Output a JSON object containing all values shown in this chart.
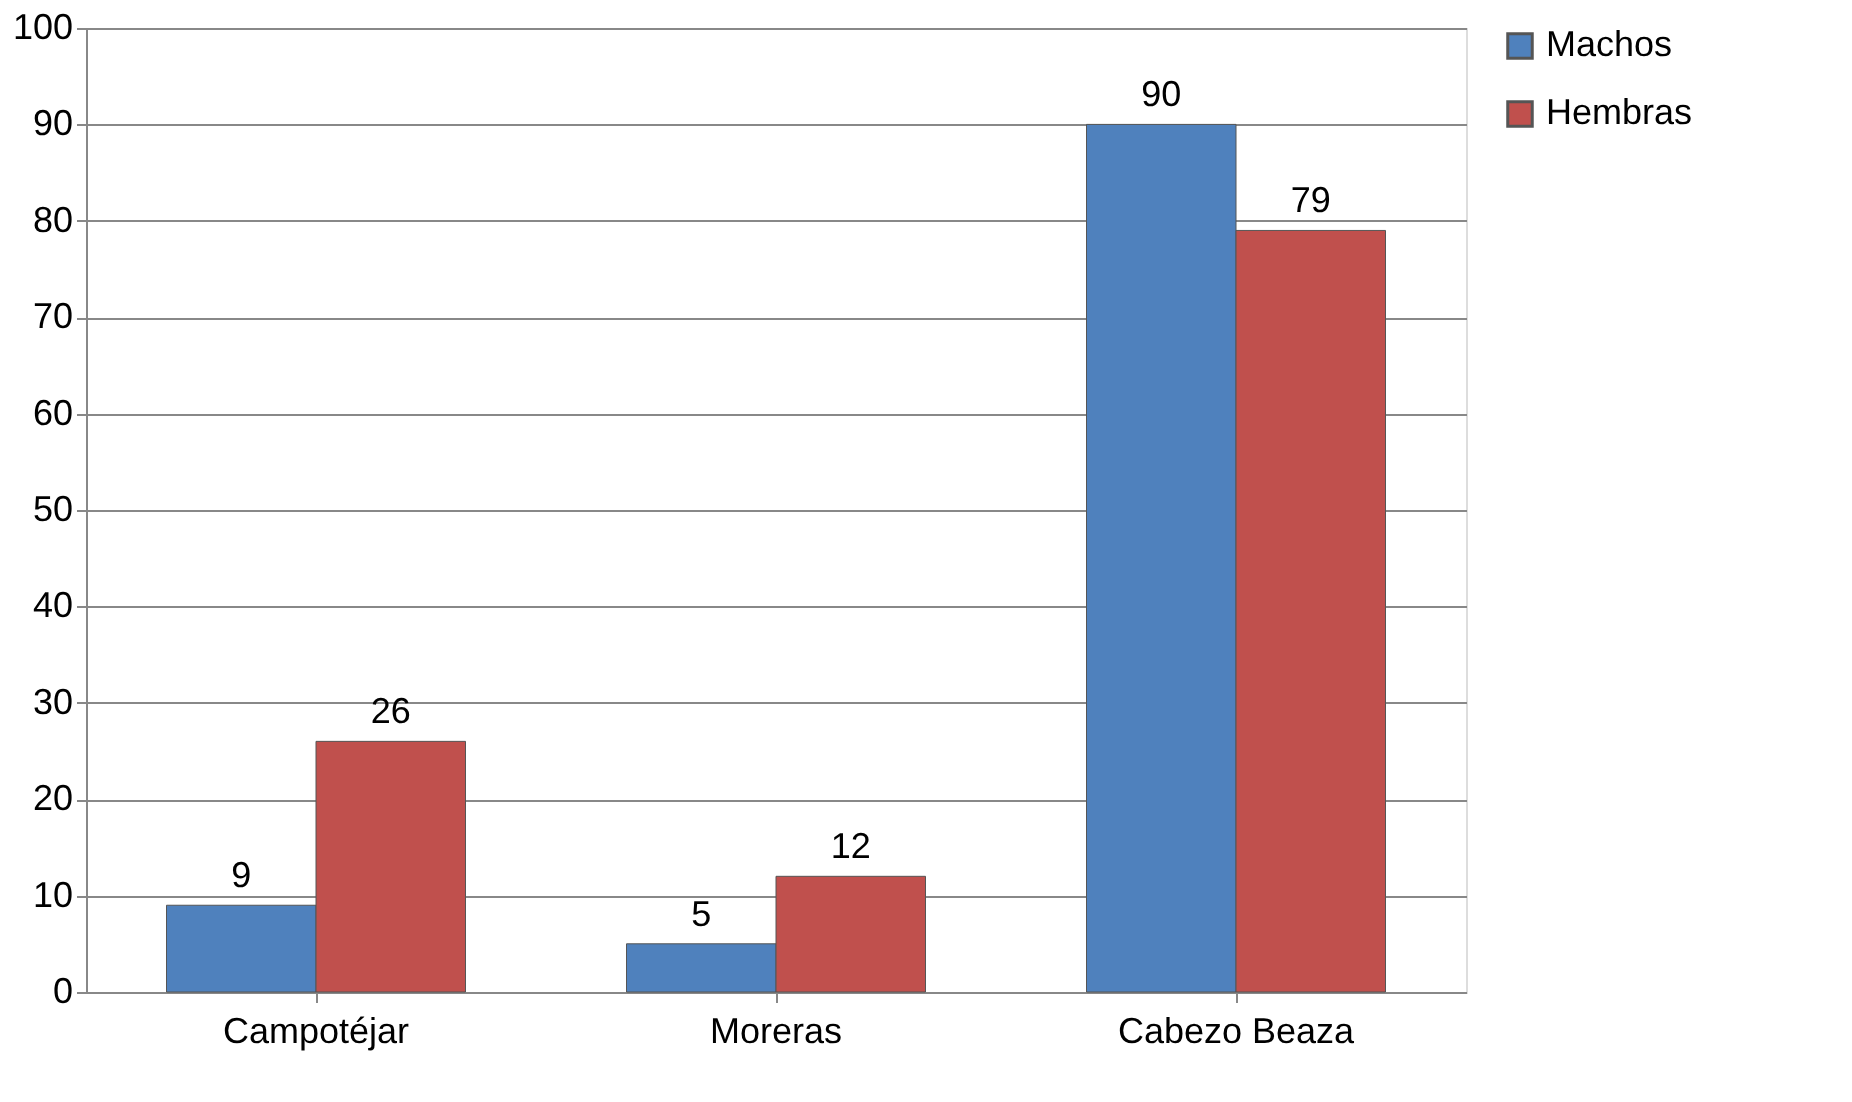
{
  "chart_data": {
    "type": "bar",
    "categories": [
      "Campotéjar",
      "Moreras",
      "Cabezo Beaza"
    ],
    "series": [
      {
        "name": "Machos",
        "color": "#4f81bd",
        "values": [
          9,
          5,
          90
        ]
      },
      {
        "name": "Hembras",
        "color": "#c0504d",
        "values": [
          26,
          12,
          79
        ]
      }
    ],
    "ylim": [
      0,
      100
    ],
    "yticks": [
      0,
      10,
      20,
      30,
      40,
      50,
      60,
      70,
      80,
      90,
      100
    ],
    "grid": "y",
    "legend": "right",
    "data_labels": true
  }
}
